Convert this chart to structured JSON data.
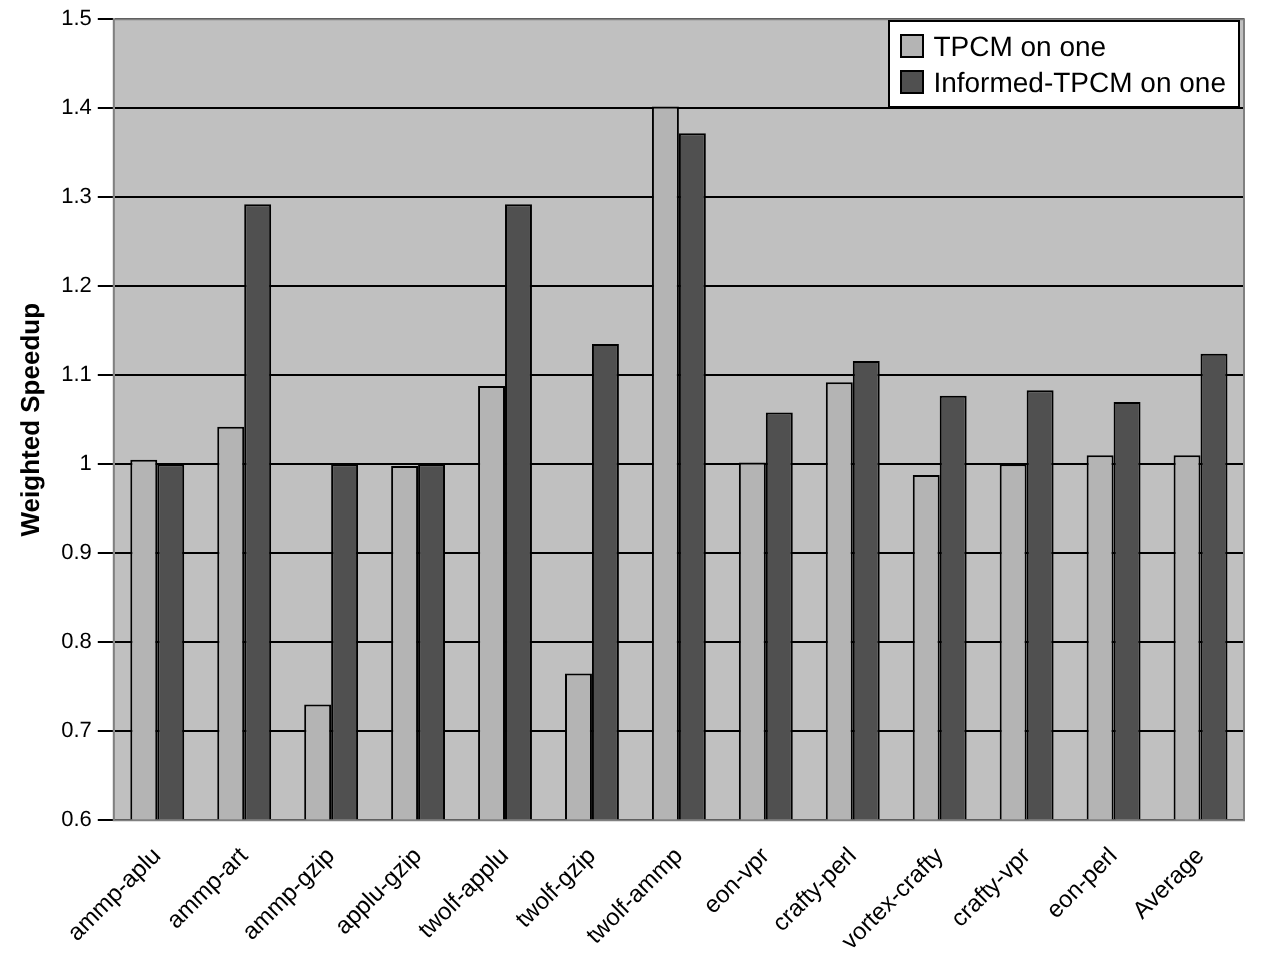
{
  "chart_data": {
    "type": "bar",
    "ylabel": "Weighted Speedup",
    "categories": [
      "ammp-aplu",
      "ammp-art",
      "ammp-gzip",
      "applu-gzip",
      "twolf-applu",
      "twolf-gzip",
      "twolf-ammp",
      "eon-vpr",
      "crafty-perl",
      "vortex-crafty",
      "crafty-vpr",
      "eon-perl",
      "Average"
    ],
    "series": [
      {
        "name": "TPCM on one",
        "color": "#b4b4b4",
        "values": [
          1.005,
          1.042,
          0.73,
          0.998,
          1.088,
          0.765,
          1.402,
          1.002,
          1.092,
          0.988,
          1.0,
          1.01,
          1.01
        ]
      },
      {
        "name": "Informed-TPCM on one",
        "color": "#505050",
        "values": [
          1.0,
          1.292,
          1.0,
          1.0,
          1.292,
          1.135,
          1.372,
          1.058,
          1.116,
          1.077,
          1.083,
          1.07,
          1.124
        ]
      }
    ],
    "ylim": [
      0.6,
      1.5
    ],
    "yticks": [
      0.6,
      0.7,
      0.8,
      0.9,
      1,
      1.1,
      1.2,
      1.3,
      1.4,
      1.5
    ],
    "grid": "y",
    "legend": "top right"
  }
}
